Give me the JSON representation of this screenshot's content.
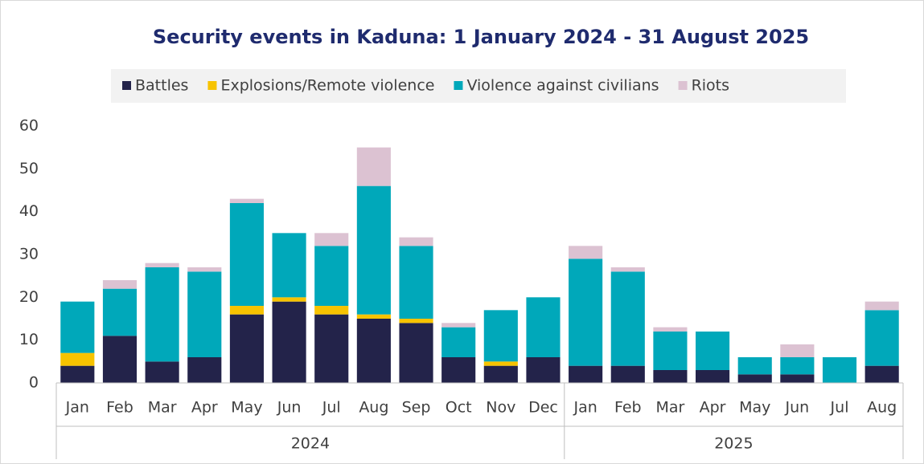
{
  "chart_data": {
    "type": "stacked_bar",
    "title": "Security events in Kaduna: 1 January 2024 - 31 August 2025",
    "categories": [
      "Jan",
      "Feb",
      "Mar",
      "Apr",
      "May",
      "Jun",
      "Jul",
      "Aug",
      "Sep",
      "Oct",
      "Nov",
      "Dec",
      "Jan",
      "Feb",
      "Mar",
      "Apr",
      "May",
      "Jun",
      "Jul",
      "Aug"
    ],
    "category_groups": [
      {
        "label": "2024",
        "size": 12
      },
      {
        "label": "2025",
        "size": 8
      }
    ],
    "series": [
      {
        "name": "Battles",
        "color": "#23234a",
        "values": [
          4,
          11,
          5,
          6,
          16,
          19,
          16,
          15,
          14,
          6,
          4,
          6,
          4,
          4,
          3,
          3,
          2,
          2,
          0,
          4
        ]
      },
      {
        "name": "Explosions/Remote violence",
        "color": "#f7c300",
        "values": [
          3,
          0,
          0,
          0,
          2,
          1,
          2,
          1,
          1,
          0,
          1,
          0,
          0,
          0,
          0,
          0,
          0,
          0,
          0,
          0
        ]
      },
      {
        "name": "Violence against civilians",
        "color": "#00a8ba",
        "values": [
          12,
          11,
          22,
          20,
          24,
          15,
          14,
          30,
          17,
          7,
          12,
          14,
          25,
          22,
          9,
          9,
          4,
          4,
          6,
          13
        ]
      },
      {
        "name": "Riots",
        "color": "#dcc2d2",
        "values": [
          0,
          2,
          1,
          1,
          1,
          0,
          3,
          9,
          2,
          1,
          0,
          0,
          3,
          1,
          1,
          0,
          0,
          3,
          0,
          2
        ]
      }
    ],
    "ylim": [
      0,
      60
    ],
    "yticks": [
      0,
      10,
      20,
      30,
      40,
      50,
      60
    ],
    "legend": "top"
  }
}
